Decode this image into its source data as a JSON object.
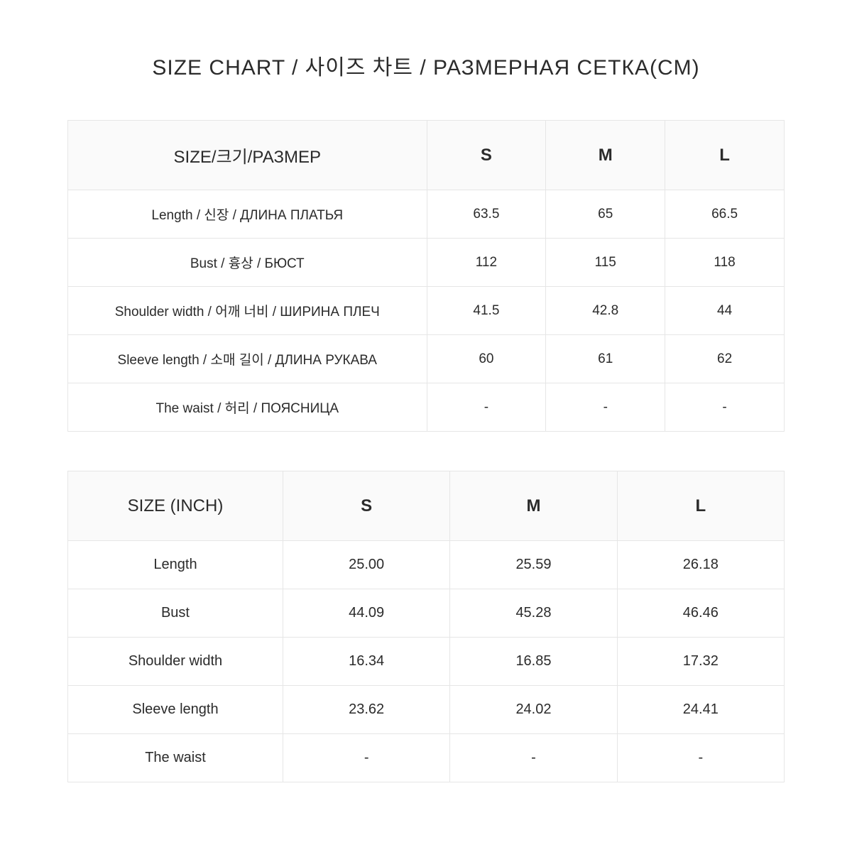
{
  "title": "SIZE CHART / 사이즈 차트 / РАЗМЕРНАЯ СЕТКА(CM)",
  "cm": {
    "head": {
      "label": "SIZE/크기/РАЗМЕР",
      "s": "S",
      "m": "M",
      "l": "L"
    },
    "rows": [
      {
        "label": "Length  / 신장  /  ДЛИНА ПЛАТЬЯ",
        "s": "63.5",
        "m": "65",
        "l": "66.5"
      },
      {
        "label": "Bust  / 흉상  /  БЮСТ",
        "s": "112",
        "m": "115",
        "l": "118"
      },
      {
        "label": "Shoulder width  /  어깨 너비  /  ШИРИНА ПЛЕЧ",
        "s": "41.5",
        "m": "42.8",
        "l": "44"
      },
      {
        "label": "Sleeve length / 소매 길이  /  ДЛИНА РУКАВА",
        "s": "60",
        "m": "61",
        "l": "62"
      },
      {
        "label": "The waist  / 허리  /  ПОЯСНИЦА",
        "s": "-",
        "m": "-",
        "l": "-"
      }
    ]
  },
  "in": {
    "head": {
      "label": "SIZE (INCH)",
      "s": "S",
      "m": "M",
      "l": "L"
    },
    "rows": [
      {
        "label": "Length",
        "s": "25.00",
        "m": "25.59",
        "l": "26.18"
      },
      {
        "label": "Bust",
        "s": "44.09",
        "m": "45.28",
        "l": "46.46"
      },
      {
        "label": "Shoulder width",
        "s": "16.34",
        "m": "16.85",
        "l": "17.32"
      },
      {
        "label": "Sleeve length",
        "s": "23.62",
        "m": "24.02",
        "l": "24.41"
      },
      {
        "label": "The waist",
        "s": "-",
        "m": "-",
        "l": "-"
      }
    ]
  }
}
